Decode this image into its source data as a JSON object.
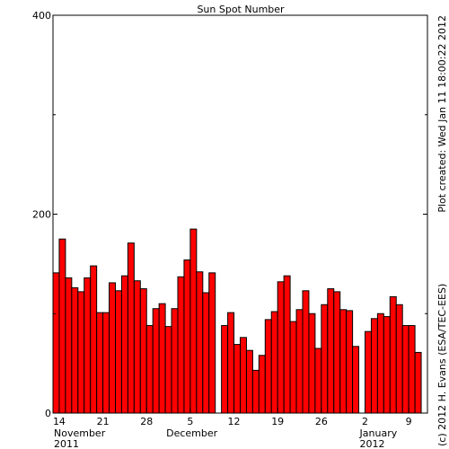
{
  "chart_data": {
    "type": "bar",
    "title": "Sun Spot Number",
    "side_notes": [
      "Plot created: Wed Jan 11 18:00:22 2012",
      "(c) 2012 H. Evans (ESA/TEC-EES)"
    ],
    "x": [
      "2011-11-13",
      "2011-11-14",
      "2011-11-15",
      "2011-11-16",
      "2011-11-17",
      "2011-11-18",
      "2011-11-19",
      "2011-11-20",
      "2011-11-21",
      "2011-11-22",
      "2011-11-23",
      "2011-11-24",
      "2011-11-25",
      "2011-11-26",
      "2011-11-27",
      "2011-11-28",
      "2011-11-29",
      "2011-11-30",
      "2011-12-01",
      "2011-12-02",
      "2011-12-03",
      "2011-12-04",
      "2011-12-05",
      "2011-12-06",
      "2011-12-07",
      "2011-12-08",
      "2011-12-09",
      "2011-12-10",
      "2011-12-11",
      "2011-12-12",
      "2011-12-13",
      "2011-12-14",
      "2011-12-15",
      "2011-12-16",
      "2011-12-17",
      "2011-12-18",
      "2011-12-19",
      "2011-12-20",
      "2011-12-21",
      "2011-12-22",
      "2011-12-23",
      "2011-12-24",
      "2011-12-25",
      "2011-12-26",
      "2011-12-27",
      "2011-12-28",
      "2011-12-29",
      "2011-12-30",
      "2011-12-31",
      "2012-01-01",
      "2012-01-02",
      "2012-01-03",
      "2012-01-04",
      "2012-01-05",
      "2012-01-06",
      "2012-01-07",
      "2012-01-08",
      "2012-01-09",
      "2012-01-10"
    ],
    "values": [
      141,
      175,
      136,
      126,
      122,
      136,
      148,
      101,
      101,
      131,
      123,
      138,
      171,
      133,
      125,
      88,
      105,
      110,
      87,
      105,
      137,
      154,
      185,
      142,
      121,
      141,
      null,
      88,
      101,
      69,
      76,
      63,
      43,
      58,
      94,
      102,
      132,
      138,
      92,
      104,
      123,
      100,
      65,
      109,
      125,
      122,
      104,
      103,
      67,
      null,
      82,
      95,
      100,
      97,
      117,
      109,
      88,
      88,
      61
    ],
    "color": "#ff0000",
    "xlim": [
      "2011-11-13",
      "2012-01-12"
    ],
    "xticks": [
      {
        "value": "2011-11-14",
        "label": "14"
      },
      {
        "value": "2011-11-21",
        "label": "21"
      },
      {
        "value": "2011-11-28",
        "label": "28"
      },
      {
        "value": "2011-12-05",
        "label": "5"
      },
      {
        "value": "2011-12-12",
        "label": "12"
      },
      {
        "value": "2011-12-19",
        "label": "19"
      },
      {
        "value": "2011-12-26",
        "label": "26"
      },
      {
        "value": "2012-01-02",
        "label": "2"
      },
      {
        "value": "2012-01-09",
        "label": "9"
      }
    ],
    "month_labels": [
      {
        "value": "2011-11-13",
        "label": "November"
      },
      {
        "value": "2011-12-01",
        "label": "December"
      },
      {
        "value": "2012-01-01",
        "label": "January"
      }
    ],
    "year_labels": [
      {
        "value": "2011-11-13",
        "label": "2011"
      },
      {
        "value": "2012-01-01",
        "label": "2012"
      }
    ],
    "ylim": [
      0,
      400
    ],
    "yticks": [
      0,
      200,
      400
    ],
    "y_minor_ticks": [
      100,
      300
    ]
  }
}
